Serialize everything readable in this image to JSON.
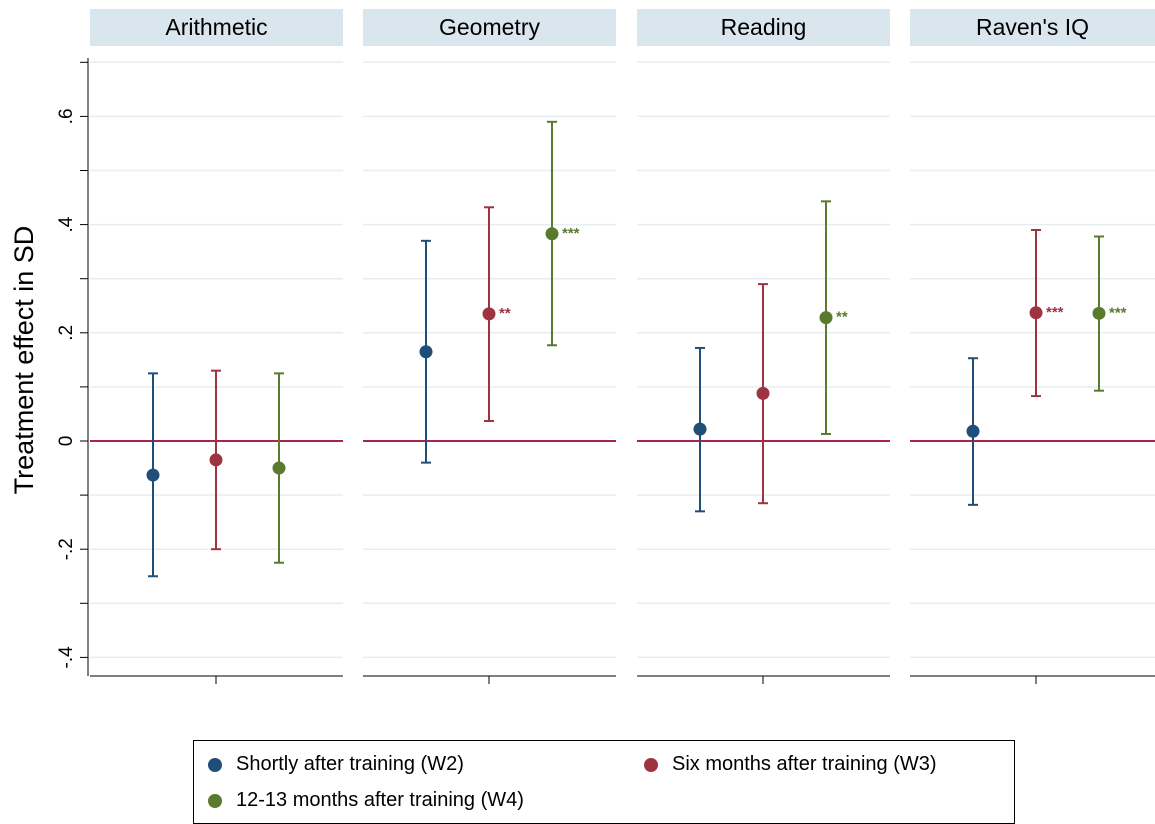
{
  "chart_data": {
    "type": "scatter",
    "subtype": "point-with-error-bars",
    "ylabel": "Treatment effect in SD",
    "ylim": [
      -0.43,
      0.73
    ],
    "yticks": [
      -0.4,
      -0.2,
      0,
      0.2,
      0.4,
      0.6
    ],
    "ytick_labels": [
      "-.4",
      "-.2",
      "0",
      ".2",
      ".4",
      ".6"
    ],
    "reference_line": 0,
    "grid": true,
    "legend_position": "bottom",
    "colors": {
      "W2": "#1f4e79",
      "W3": "#9e3440",
      "W4": "#5a7a2e",
      "reference": "#a8244a",
      "panel_header": "#d9e6ee"
    },
    "series": [
      {
        "key": "W2",
        "name": "Shortly after training (W2)"
      },
      {
        "key": "W3",
        "name": "Six months after training (W3)"
      },
      {
        "key": "W4",
        "name": "12-13 months after training (W4)"
      }
    ],
    "panels": [
      {
        "title": "Arithmetic",
        "points": [
          {
            "series": "W2",
            "estimate": -0.063,
            "ci_low": -0.25,
            "ci_high": 0.125,
            "stars": ""
          },
          {
            "series": "W3",
            "estimate": -0.035,
            "ci_low": -0.2,
            "ci_high": 0.13,
            "stars": ""
          },
          {
            "series": "W4",
            "estimate": -0.05,
            "ci_low": -0.225,
            "ci_high": 0.125,
            "stars": ""
          }
        ]
      },
      {
        "title": "Geometry",
        "points": [
          {
            "series": "W2",
            "estimate": 0.165,
            "ci_low": -0.04,
            "ci_high": 0.37,
            "stars": ""
          },
          {
            "series": "W3",
            "estimate": 0.235,
            "ci_low": 0.037,
            "ci_high": 0.432,
            "stars": "**"
          },
          {
            "series": "W4",
            "estimate": 0.383,
            "ci_low": 0.177,
            "ci_high": 0.59,
            "stars": "***"
          }
        ]
      },
      {
        "title": "Reading",
        "points": [
          {
            "series": "W2",
            "estimate": 0.022,
            "ci_low": -0.13,
            "ci_high": 0.172,
            "stars": ""
          },
          {
            "series": "W3",
            "estimate": 0.088,
            "ci_low": -0.115,
            "ci_high": 0.29,
            "stars": ""
          },
          {
            "series": "W4",
            "estimate": 0.228,
            "ci_low": 0.013,
            "ci_high": 0.443,
            "stars": "**"
          }
        ]
      },
      {
        "title": "Raven's IQ",
        "points": [
          {
            "series": "W2",
            "estimate": 0.018,
            "ci_low": -0.118,
            "ci_high": 0.153,
            "stars": ""
          },
          {
            "series": "W3",
            "estimate": 0.237,
            "ci_low": 0.083,
            "ci_high": 0.39,
            "stars": "***"
          },
          {
            "series": "W4",
            "estimate": 0.236,
            "ci_low": 0.093,
            "ci_high": 0.378,
            "stars": "***"
          }
        ]
      }
    ]
  }
}
